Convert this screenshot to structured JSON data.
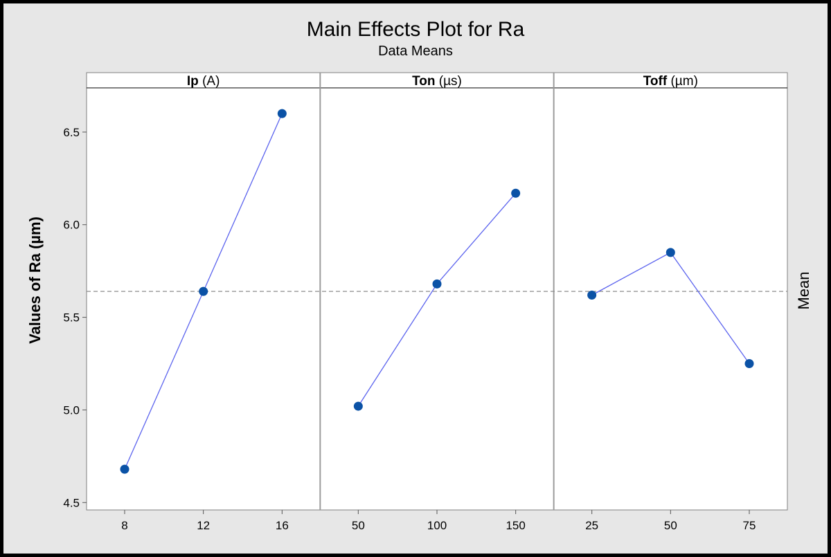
{
  "chart_data": {
    "type": "line",
    "title": "Main Effects Plot for Ra",
    "subtitle": "Data Means",
    "ylabel": "Values of Ra (µm)",
    "right_label": "Mean",
    "ylim": [
      4.46,
      6.72
    ],
    "yticks": [
      "4.5",
      "5.0",
      "5.5",
      "6.0",
      "6.5"
    ],
    "ytick_values": [
      4.5,
      5.0,
      5.5,
      6.0,
      6.5
    ],
    "reference_mean": 5.64,
    "grid": false,
    "marker_color": "#0b52a6",
    "line_color": "#5b63ee",
    "mean_line_color": "#8a8a8a",
    "panels": [
      {
        "factor": "Ip",
        "unit": "(A)",
        "x": [
          "8",
          "12",
          "16"
        ],
        "values": [
          4.68,
          5.64,
          6.6
        ]
      },
      {
        "factor": "Ton",
        "unit": "(µs)",
        "x": [
          "50",
          "100",
          "150"
        ],
        "values": [
          5.02,
          5.68,
          6.17
        ]
      },
      {
        "factor": "Toff",
        "unit": "(µm)",
        "x": [
          "25",
          "50",
          "75"
        ],
        "values": [
          5.62,
          5.85,
          5.25
        ]
      }
    ]
  }
}
